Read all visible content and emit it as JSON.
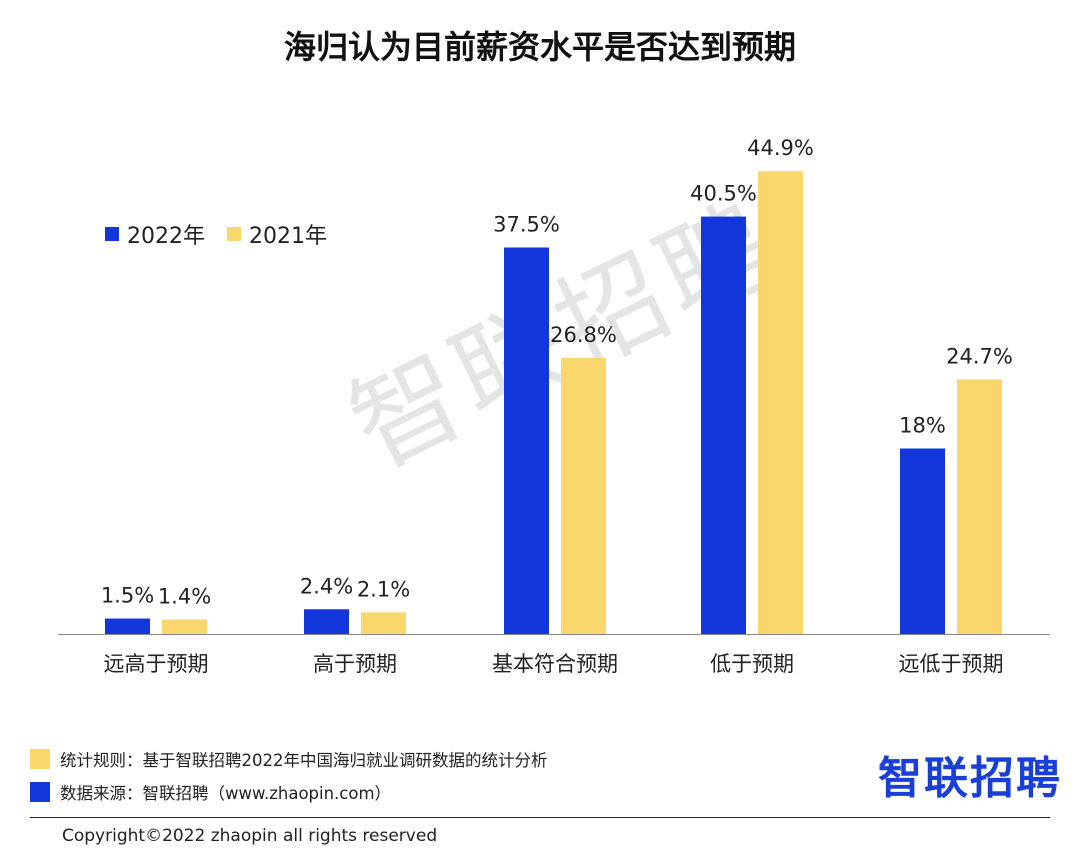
{
  "chart_data": {
    "type": "bar",
    "title": "海归认为目前薪资水平是否达到预期",
    "categories": [
      "远高于预期",
      "高于预期",
      "基本符合预期",
      "低于预期",
      "远低于预期"
    ],
    "series": [
      {
        "name": "2022年",
        "color": "#1437dc",
        "values": [
          1.5,
          2.4,
          37.5,
          40.5,
          18
        ],
        "labels": [
          "1.5%",
          "2.4%",
          "37.5%",
          "40.5%",
          "18%"
        ]
      },
      {
        "name": "2021年",
        "color": "#fad76c",
        "values": [
          1.4,
          2.1,
          26.8,
          44.9,
          24.7
        ],
        "labels": [
          "1.4%",
          "2.1%",
          "26.8%",
          "44.9%",
          "24.7%"
        ]
      }
    ],
    "ylim": [
      0,
      50
    ],
    "grid": false,
    "legend_position": "top-left"
  },
  "watermark": "智联招聘",
  "notes": {
    "rule": "统计规则：基于智联招聘2022年中国海归就业调研数据的统计分析",
    "source": "数据来源：智联招聘（www.zhaopin.com）"
  },
  "brand": "智联招聘",
  "copyright": "Copyright©2022 zhaopin all rights reserved"
}
